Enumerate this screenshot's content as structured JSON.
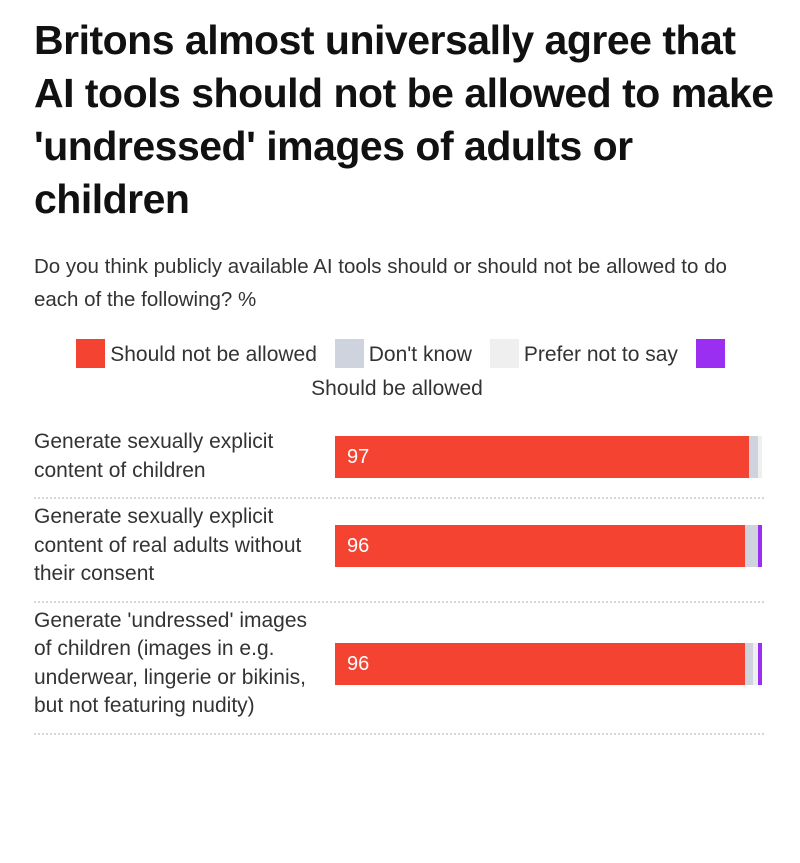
{
  "chart_data": {
    "type": "stacked_bar_horizontal",
    "title": "Britons almost universally agree that AI tools should not be allowed to make 'undressed' images of adults or children",
    "subtitle": "Do you think publicly available AI tools should or should not be allowed to do each of the following? %",
    "categories": [
      "Generate sexually explicit content of children",
      "Generate sexually explicit content of real adults without their consent",
      "Generate 'undressed' images of children (images in e.g. underwear, lingerie or bikinis, but not featuring nudity)"
    ],
    "xlim": [
      0,
      100
    ],
    "series": [
      {
        "name": "Should not be allowed",
        "color": "#f54332",
        "values": [
          97,
          96,
          96
        ]
      },
      {
        "name": "Don't know",
        "color": "#cfd3de",
        "values": [
          2,
          3,
          2
        ]
      },
      {
        "name": "Prefer not to say",
        "color": "#efefef",
        "values": [
          1,
          0,
          1
        ]
      },
      {
        "name": "Should be allowed",
        "color": "#9a2ff2",
        "values": [
          0,
          1,
          1
        ]
      }
    ]
  }
}
